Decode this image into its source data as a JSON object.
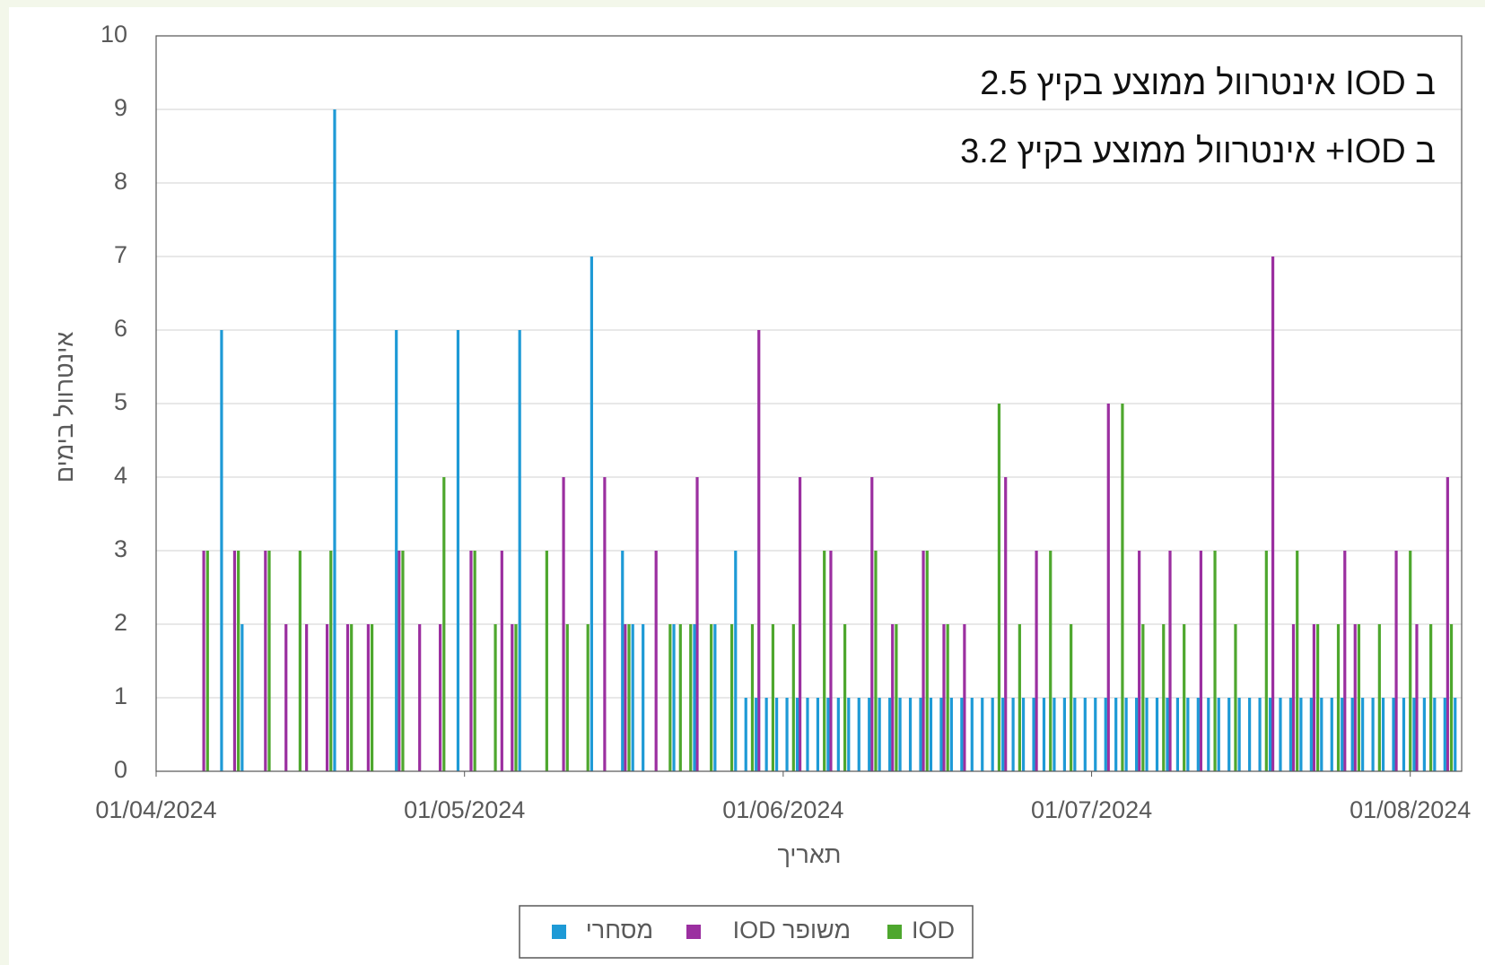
{
  "chart_data": {
    "type": "bar",
    "annotations": [
      "ב IOD אינטרוול ממוצע בקיץ 2.5",
      "ב IOD+  אינטרוול ממוצע בקיץ 3.2"
    ],
    "x_label": "תאריך",
    "y_label": "אינטרוול בימים",
    "x": [
      "06/04/2024",
      "07/04/2024",
      "09/04/2024",
      "12/04/2024",
      "14/04/2024",
      "15/04/2024",
      "16/04/2024",
      "18/04/2024",
      "20/04/2024",
      "22/04/2024",
      "24/04/2024",
      "25/04/2024",
      "27/04/2024",
      "29/04/2024",
      "30/04/2024",
      "02/05/2024",
      "04/05/2024",
      "05/05/2024",
      "06/05/2024",
      "09/05/2024",
      "11/05/2024",
      "13/05/2024",
      "15/05/2024",
      "16/05/2024",
      "17/05/2024",
      "18/05/2024",
      "20/05/2024",
      "21/05/2024",
      "22/05/2024",
      "23/05/2024",
      "24/05/2024",
      "25/05/2024",
      "27/05/2024",
      "28/05/2024",
      "29/05/2024",
      "30/05/2024",
      "31/05/2024",
      "01/06/2024",
      "02/06/2024",
      "03/06/2024",
      "04/06/2024",
      "05/06/2024",
      "06/06/2024",
      "07/06/2024",
      "08/06/2024",
      "09/06/2024",
      "10/06/2024",
      "11/06/2024",
      "12/06/2024",
      "13/06/2024",
      "14/06/2024",
      "15/06/2024",
      "16/06/2024",
      "17/06/2024",
      "18/06/2024",
      "19/06/2024",
      "20/06/2024",
      "21/06/2024",
      "22/06/2024",
      "23/06/2024",
      "24/06/2024",
      "25/06/2024",
      "26/06/2024",
      "27/06/2024",
      "28/06/2024",
      "29/06/2024",
      "30/06/2024",
      "01/07/2024",
      "02/07/2024",
      "03/07/2024",
      "04/07/2024",
      "05/07/2024",
      "06/07/2024",
      "07/07/2024",
      "08/07/2024",
      "09/07/2024",
      "10/07/2024",
      "11/07/2024",
      "12/07/2024",
      "13/07/2024",
      "14/07/2024",
      "15/07/2024",
      "16/07/2024",
      "17/07/2024",
      "18/07/2024",
      "19/07/2024",
      "20/07/2024",
      "21/07/2024",
      "22/07/2024",
      "23/07/2024",
      "24/07/2024",
      "25/07/2024",
      "26/07/2024",
      "27/07/2024",
      "28/07/2024",
      "29/07/2024",
      "30/07/2024",
      "31/07/2024",
      "01/08/2024",
      "02/08/2024",
      "03/08/2024",
      "04/08/2024",
      "05/08/2024"
    ],
    "series": [
      {
        "name": "IOD",
        "color": "#4ea72e",
        "values": [
          3,
          null,
          3,
          3,
          null,
          3,
          null,
          3,
          2,
          2,
          null,
          3,
          null,
          4,
          null,
          3,
          2,
          null,
          2,
          3,
          2,
          2,
          null,
          null,
          2,
          null,
          null,
          2,
          2,
          2,
          null,
          2,
          2,
          null,
          2,
          null,
          2,
          null,
          2,
          null,
          null,
          3,
          null,
          2,
          null,
          null,
          3,
          null,
          2,
          null,
          null,
          3,
          null,
          2,
          null,
          null,
          null,
          null,
          5,
          null,
          2,
          null,
          null,
          3,
          null,
          2,
          null,
          null,
          null,
          null,
          5,
          null,
          2,
          null,
          2,
          null,
          2,
          null,
          null,
          3,
          null,
          2,
          null,
          null,
          3,
          null,
          null,
          3,
          null,
          2,
          null,
          2,
          null,
          2,
          null,
          2,
          null,
          null,
          3,
          null,
          2,
          null,
          2
        ]
      },
      {
        "name": "משופר IOD",
        "color": "#9b2fa0",
        "values": [
          3,
          null,
          3,
          3,
          2,
          null,
          2,
          2,
          2,
          2,
          null,
          3,
          2,
          2,
          null,
          3,
          null,
          3,
          2,
          null,
          4,
          null,
          4,
          null,
          2,
          null,
          3,
          null,
          null,
          null,
          4,
          null,
          null,
          null,
          null,
          6,
          null,
          null,
          null,
          4,
          null,
          null,
          3,
          null,
          null,
          null,
          4,
          null,
          2,
          null,
          null,
          3,
          null,
          2,
          null,
          2,
          null,
          null,
          null,
          4,
          null,
          null,
          3,
          null,
          null,
          null,
          null,
          null,
          null,
          5,
          null,
          null,
          3,
          null,
          null,
          3,
          null,
          null,
          3,
          null,
          null,
          null,
          null,
          null,
          null,
          7,
          null,
          2,
          null,
          2,
          null,
          null,
          3,
          2,
          null,
          null,
          null,
          3,
          null,
          2,
          null,
          null,
          4
        ]
      },
      {
        "name": "מסחרי",
        "color": "#1e9ad6",
        "values": [
          null,
          6,
          2,
          null,
          null,
          null,
          null,
          9,
          null,
          null,
          6,
          null,
          null,
          null,
          6,
          null,
          null,
          null,
          6,
          null,
          null,
          7,
          null,
          3,
          2,
          2,
          null,
          2,
          null,
          2,
          null,
          2,
          3,
          1,
          1,
          1,
          1,
          1,
          1,
          1,
          1,
          1,
          1,
          1,
          1,
          1,
          1,
          1,
          1,
          1,
          1,
          1,
          1,
          1,
          1,
          1,
          1,
          1,
          1,
          1,
          1,
          1,
          1,
          1,
          1,
          1,
          1,
          1,
          1,
          1,
          1,
          1,
          1,
          1,
          1,
          1,
          1,
          1,
          1,
          1,
          1,
          1,
          1,
          1,
          1,
          1,
          1,
          1,
          1,
          1,
          1,
          1,
          1,
          1,
          1,
          1,
          1,
          1,
          1,
          1,
          1,
          1,
          1
        ]
      }
    ],
    "xlim": [
      "01/04/2024",
      "06/08/2024"
    ],
    "xticks": [
      "01/04/2024",
      "01/05/2024",
      "01/06/2024",
      "01/07/2024",
      "01/08/2024"
    ],
    "ylim": [
      0,
      10
    ],
    "yticks": [
      0,
      1,
      2,
      3,
      4,
      5,
      6,
      7,
      8,
      9,
      10
    ],
    "grid": true,
    "legend": "bottom"
  }
}
